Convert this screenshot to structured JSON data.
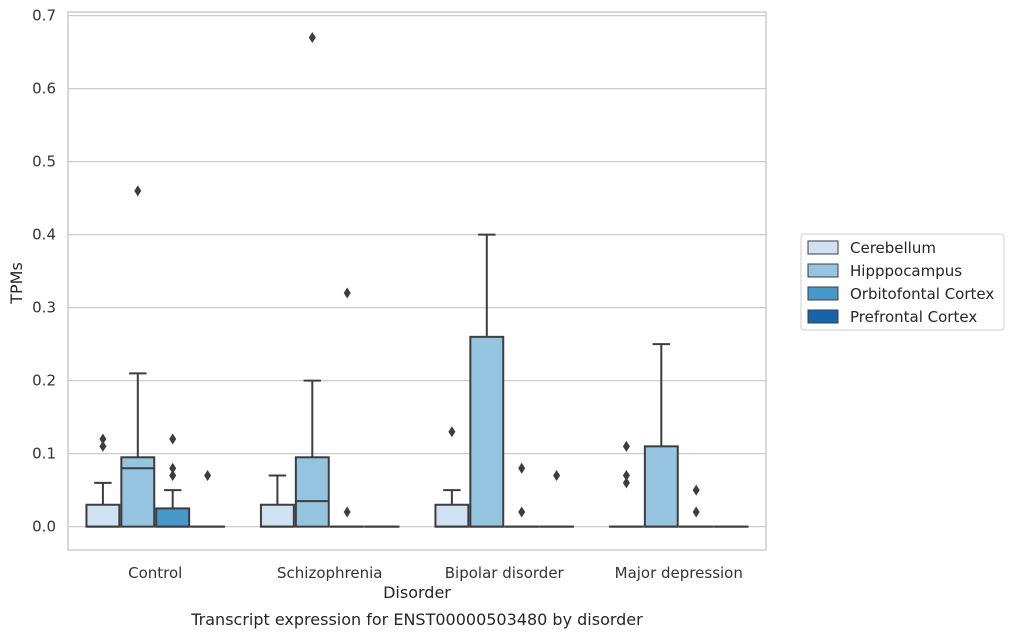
{
  "chart_data": {
    "type": "boxplot",
    "title": "Transcript expression for ENST00000503480 by disorder",
    "xlabel": "Disorder",
    "ylabel": "TPMs",
    "ylim": [
      -0.032,
      0.705
    ],
    "yticks": [
      "0.0",
      "0.1",
      "0.2",
      "0.3",
      "0.4",
      "0.5",
      "0.6",
      "0.7"
    ],
    "grid": true,
    "legend_position": "right",
    "categories": [
      "Control",
      "Schizophrenia",
      "Bipolar disorder",
      "Major depression"
    ],
    "series": [
      {
        "name": "Cerebellum",
        "color": "#d0e1f2",
        "boxes": [
          {
            "q1": 0.0,
            "median": 0.0,
            "q3": 0.03,
            "whisker_low": 0.0,
            "whisker_high": 0.06,
            "outliers": [
              0.11,
              0.12
            ]
          },
          {
            "q1": 0.0,
            "median": 0.0,
            "q3": 0.03,
            "whisker_low": 0.0,
            "whisker_high": 0.07,
            "outliers": []
          },
          {
            "q1": 0.0,
            "median": 0.0,
            "q3": 0.03,
            "whisker_low": 0.0,
            "whisker_high": 0.05,
            "outliers": [
              0.13
            ]
          },
          {
            "q1": 0.0,
            "median": 0.0,
            "q3": 0.0,
            "whisker_low": 0.0,
            "whisker_high": 0.0,
            "outliers": [
              0.06,
              0.07,
              0.11
            ]
          }
        ]
      },
      {
        "name": "Hipppocampus",
        "color": "#94c4df",
        "boxes": [
          {
            "q1": 0.0,
            "median": 0.08,
            "q3": 0.095,
            "whisker_low": 0.0,
            "whisker_high": 0.21,
            "outliers": [
              0.46
            ]
          },
          {
            "q1": 0.0,
            "median": 0.035,
            "q3": 0.095,
            "whisker_low": 0.0,
            "whisker_high": 0.2,
            "outliers": [
              0.67
            ]
          },
          {
            "q1": 0.0,
            "median": 0.0,
            "q3": 0.26,
            "whisker_low": 0.0,
            "whisker_high": 0.4,
            "outliers": []
          },
          {
            "q1": 0.0,
            "median": 0.0,
            "q3": 0.11,
            "whisker_low": 0.0,
            "whisker_high": 0.25,
            "outliers": []
          }
        ]
      },
      {
        "name": "Orbitofontal Cortex",
        "color": "#4a98c9",
        "boxes": [
          {
            "q1": 0.0,
            "median": 0.0,
            "q3": 0.025,
            "whisker_low": 0.0,
            "whisker_high": 0.05,
            "outliers": [
              0.07,
              0.08,
              0.12
            ]
          },
          {
            "q1": 0.0,
            "median": 0.0,
            "q3": 0.0,
            "whisker_low": 0.0,
            "whisker_high": 0.0,
            "outliers": [
              0.02,
              0.32
            ]
          },
          {
            "q1": 0.0,
            "median": 0.0,
            "q3": 0.0,
            "whisker_low": 0.0,
            "whisker_high": 0.0,
            "outliers": [
              0.02,
              0.08
            ]
          },
          {
            "q1": 0.0,
            "median": 0.0,
            "q3": 0.0,
            "whisker_low": 0.0,
            "whisker_high": 0.0,
            "outliers": [
              0.02,
              0.05
            ]
          }
        ]
      },
      {
        "name": "Prefrontal Cortex",
        "color": "#1764ab",
        "boxes": [
          {
            "q1": 0.0,
            "median": 0.0,
            "q3": 0.0,
            "whisker_low": 0.0,
            "whisker_high": 0.0,
            "outliers": [
              0.07
            ]
          },
          {
            "q1": 0.0,
            "median": 0.0,
            "q3": 0.0,
            "whisker_low": 0.0,
            "whisker_high": 0.0,
            "outliers": []
          },
          {
            "q1": 0.0,
            "median": 0.0,
            "q3": 0.0,
            "whisker_low": 0.0,
            "whisker_high": 0.0,
            "outliers": [
              0.07
            ]
          },
          {
            "q1": 0.0,
            "median": 0.0,
            "q3": 0.0,
            "whisker_low": 0.0,
            "whisker_high": 0.0,
            "outliers": []
          }
        ]
      }
    ]
  }
}
